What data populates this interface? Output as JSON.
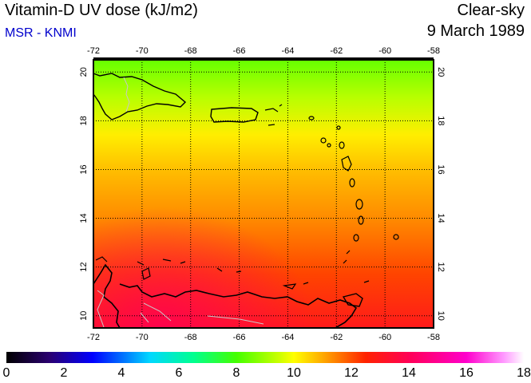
{
  "header": {
    "title": "Vitamin-D UV dose (kJ/m2)",
    "source": "MSR - KNMI",
    "condition": "Clear-sky",
    "date": "9 March 1989"
  },
  "colors": {
    "source_text": "#0000cc",
    "coastline": "#000000",
    "borders": "#c8c8c8",
    "grid": "#000000"
  },
  "map": {
    "lon_range": [
      -72,
      -58
    ],
    "lat_range": [
      9.5,
      20.5
    ],
    "lon_ticks": [
      "-72",
      "-70",
      "-68",
      "-66",
      "-64",
      "-62",
      "-60",
      "-58"
    ],
    "lat_ticks": [
      "10",
      "12",
      "14",
      "16",
      "18",
      "20"
    ],
    "grid": true,
    "field_description_values": {
      "north_20N": 8,
      "lat_16N": 11,
      "lat_12N": 12.5,
      "south_10N": 13.5
    }
  },
  "colorbar": {
    "ticks": [
      "0",
      "2",
      "4",
      "6",
      "8",
      "10",
      "12",
      "14",
      "16",
      "18"
    ],
    "range": [
      0,
      18
    ],
    "stops": [
      {
        "v": 0,
        "c": "#000000"
      },
      {
        "v": 1.5,
        "c": "#2a0070"
      },
      {
        "v": 3,
        "c": "#0000ff"
      },
      {
        "v": 5,
        "c": "#00d8ff"
      },
      {
        "v": 6.5,
        "c": "#00ff90"
      },
      {
        "v": 8,
        "c": "#44ff00"
      },
      {
        "v": 9.5,
        "c": "#ccff00"
      },
      {
        "v": 10,
        "c": "#ffff00"
      },
      {
        "v": 11,
        "c": "#ffaa00"
      },
      {
        "v": 12.5,
        "c": "#ff2200"
      },
      {
        "v": 14,
        "c": "#ff0055"
      },
      {
        "v": 16,
        "c": "#ff00cc"
      },
      {
        "v": 17.3,
        "c": "#ff99ff"
      },
      {
        "v": 18,
        "c": "#ffffff"
      }
    ]
  }
}
